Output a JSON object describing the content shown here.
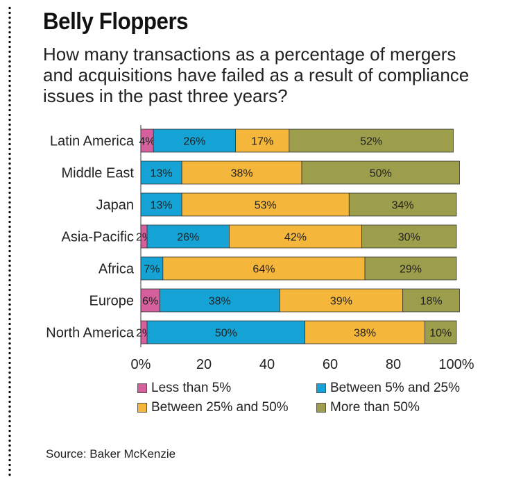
{
  "header": {
    "title": "Belly Floppers",
    "subtitle": "How many transactions as a percentage of mergers and acquisitions have failed as a result of compliance issues in the past three years?"
  },
  "source": "Source: Baker McKenzie",
  "chart_data": {
    "type": "bar",
    "orientation": "horizontal",
    "stacked": true,
    "categories": [
      "Latin America",
      "Middle East",
      "Japan",
      "Asia-Pacific",
      "Africa",
      "Europe",
      "North America"
    ],
    "series": [
      {
        "name": "Less than 5%",
        "color": "#d6609d",
        "values": [
          4,
          0,
          0,
          2,
          0,
          6,
          2
        ]
      },
      {
        "name": "Between 5% and 25%",
        "color": "#14a3d4",
        "values": [
          26,
          13,
          13,
          26,
          7,
          38,
          50
        ]
      },
      {
        "name": "Between 25% and 50%",
        "color": "#f5b63c",
        "values": [
          17,
          38,
          53,
          42,
          64,
          39,
          38
        ]
      },
      {
        "name": "More than 50%",
        "color": "#9d9e4c",
        "values": [
          52,
          50,
          34,
          30,
          29,
          18,
          10
        ]
      }
    ],
    "xlim": [
      0,
      100
    ],
    "xticks": [
      "0%",
      "20",
      "40",
      "60",
      "80",
      "100%"
    ],
    "grid": false,
    "legend_position": "bottom"
  }
}
